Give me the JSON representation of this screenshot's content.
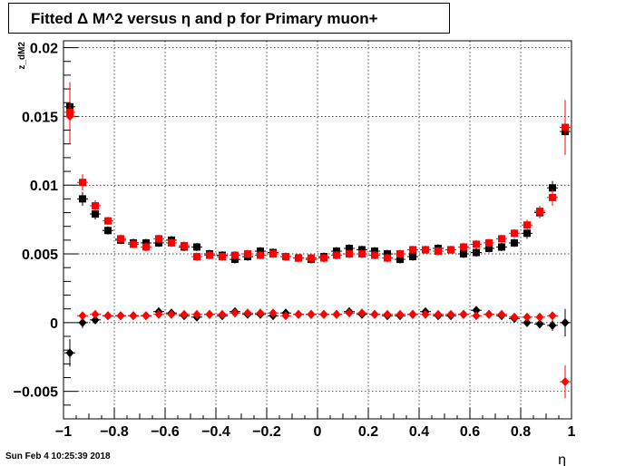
{
  "title": "Fitted Δ M^2 versus η and p for Primary muon+",
  "timestamp": "Sun Feb  4 10:25:39 2018",
  "chart_data": {
    "type": "scatter",
    "title": "Fitted Δ M^2 versus η and p for Primary muon+",
    "xlabel": "η",
    "ylabel": "z_dM2",
    "xlim": [
      -1,
      1
    ],
    "ylim": [
      -0.007,
      0.0205
    ],
    "grid": true,
    "x_ticks": [
      -1,
      -0.8,
      -0.6,
      -0.4,
      -0.2,
      0,
      0.2,
      0.4,
      0.6,
      0.8,
      1
    ],
    "x_tick_labels": [
      "−1",
      "−0.8",
      "−0.6",
      "−0.4",
      "−0.2",
      "0",
      "0.2",
      "0.4",
      "0.6",
      "0.8",
      "1"
    ],
    "y_ticks": [
      -0.005,
      0,
      0.005,
      0.01,
      0.015,
      0.02
    ],
    "y_tick_labels": [
      "−0.005",
      "0",
      "0.005",
      "0.01",
      "0.015",
      "0.02"
    ],
    "x": [
      -0.975,
      -0.925,
      -0.875,
      -0.825,
      -0.775,
      -0.725,
      -0.675,
      -0.625,
      -0.575,
      -0.525,
      -0.475,
      -0.425,
      -0.375,
      -0.325,
      -0.275,
      -0.225,
      -0.175,
      -0.125,
      -0.075,
      -0.025,
      0.025,
      0.075,
      0.125,
      0.175,
      0.225,
      0.275,
      0.325,
      0.375,
      0.425,
      0.475,
      0.525,
      0.575,
      0.625,
      0.675,
      0.725,
      0.775,
      0.825,
      0.875,
      0.925,
      0.975
    ],
    "series": [
      {
        "marker": "square",
        "color": "#000000",
        "values": [
          0.0157,
          0.009,
          0.0079,
          0.0067,
          0.006,
          0.0058,
          0.0058,
          0.0058,
          0.006,
          0.0055,
          0.0055,
          0.005,
          0.0049,
          0.0046,
          0.0048,
          0.0052,
          0.0051,
          0.0048,
          0.0047,
          0.0046,
          0.0048,
          0.0052,
          0.0054,
          0.0053,
          0.0052,
          0.005,
          0.0046,
          0.0048,
          0.0053,
          0.0054,
          0.0053,
          0.005,
          0.0051,
          0.0054,
          0.0055,
          0.0058,
          0.0065,
          0.008,
          0.0098,
          0.0139
        ],
        "errors": [
          0.0008,
          0.0005,
          0.0004,
          0.0003,
          0.0003,
          0.0003,
          0.0003,
          0.0003,
          0.0003,
          0.0003,
          0.0003,
          0.0003,
          0.0003,
          0.0003,
          0.0003,
          0.0003,
          0.0003,
          0.0003,
          0.0003,
          0.0003,
          0.0003,
          0.0003,
          0.0003,
          0.0003,
          0.0003,
          0.0003,
          0.0003,
          0.0003,
          0.0003,
          0.0003,
          0.0003,
          0.0003,
          0.0003,
          0.0003,
          0.0003,
          0.0003,
          0.0004,
          0.0004,
          0.0005,
          0.0008
        ]
      },
      {
        "marker": "square",
        "color": "#ff0000",
        "values": [
          0.0153,
          0.0102,
          0.0085,
          0.0074,
          0.0061,
          0.0057,
          0.0055,
          0.0061,
          0.0058,
          0.0056,
          0.0048,
          0.0049,
          0.0048,
          0.0049,
          0.005,
          0.0049,
          0.005,
          0.0048,
          0.0047,
          0.0047,
          0.0047,
          0.0049,
          0.005,
          0.005,
          0.0049,
          0.0047,
          0.005,
          0.0053,
          0.0053,
          0.0052,
          0.0053,
          0.0055,
          0.0057,
          0.0058,
          0.0061,
          0.0065,
          0.0071,
          0.0081,
          0.0091,
          0.0142
        ],
        "errors": [
          0.0022,
          0.0006,
          0.0004,
          0.0003,
          0.0003,
          0.0003,
          0.0003,
          0.0003,
          0.0003,
          0.0003,
          0.0003,
          0.0003,
          0.0003,
          0.0003,
          0.0003,
          0.0003,
          0.0003,
          0.0003,
          0.0003,
          0.0003,
          0.0003,
          0.0003,
          0.0003,
          0.0003,
          0.0003,
          0.0003,
          0.0003,
          0.0003,
          0.0003,
          0.0003,
          0.0003,
          0.0003,
          0.0003,
          0.0003,
          0.0003,
          0.0003,
          0.0004,
          0.0004,
          0.0006,
          0.002
        ]
      },
      {
        "marker": "diamond",
        "color": "#000000",
        "values": [
          -0.0022,
          0.0,
          0.0002,
          0.0005,
          0.0005,
          0.0005,
          0.0005,
          0.0008,
          0.0007,
          0.0005,
          0.0004,
          0.0006,
          0.0005,
          0.0008,
          0.0006,
          0.0006,
          0.0005,
          0.0007,
          0.0006,
          0.0006,
          0.0006,
          0.0006,
          0.0008,
          0.0006,
          0.0006,
          0.0005,
          0.0005,
          0.0006,
          0.0008,
          0.0005,
          0.0005,
          0.0006,
          0.0009,
          0.0006,
          0.0005,
          0.0003,
          0.0,
          -0.0001,
          -0.0002,
          0.0
        ],
        "errors": [
          0.001,
          0.0004,
          0.0003,
          0.0002,
          0.0002,
          0.0002,
          0.0002,
          0.0002,
          0.0002,
          0.0002,
          0.0002,
          0.0002,
          0.0002,
          0.0002,
          0.0002,
          0.0002,
          0.0002,
          0.0002,
          0.0002,
          0.0002,
          0.0002,
          0.0002,
          0.0002,
          0.0002,
          0.0002,
          0.0002,
          0.0002,
          0.0002,
          0.0002,
          0.0002,
          0.0002,
          0.0002,
          0.0002,
          0.0002,
          0.0002,
          0.0002,
          0.0003,
          0.0003,
          0.0004,
          0.001
        ]
      },
      {
        "marker": "diamond",
        "color": "#ff0000",
        "values": [
          0.015,
          0.0005,
          0.0006,
          0.0005,
          0.0005,
          0.0005,
          0.0005,
          0.0006,
          0.0006,
          0.0006,
          0.0006,
          0.0006,
          0.0006,
          0.0007,
          0.0007,
          0.0007,
          0.0007,
          0.0005,
          0.0006,
          0.0006,
          0.0006,
          0.0006,
          0.0007,
          0.0007,
          0.0006,
          0.0006,
          0.0006,
          0.0006,
          0.0006,
          0.0006,
          0.0006,
          0.0006,
          0.0005,
          0.0006,
          0.0006,
          0.0004,
          0.0004,
          0.0004,
          0.0005,
          -0.0043
        ],
        "errors": [
          0.002,
          0.0003,
          0.0002,
          0.0002,
          0.0002,
          0.0002,
          0.0002,
          0.0002,
          0.0002,
          0.0002,
          0.0002,
          0.0002,
          0.0002,
          0.0002,
          0.0002,
          0.0002,
          0.0002,
          0.0002,
          0.0002,
          0.0002,
          0.0002,
          0.0002,
          0.0002,
          0.0002,
          0.0002,
          0.0002,
          0.0002,
          0.0002,
          0.0002,
          0.0002,
          0.0002,
          0.0002,
          0.0002,
          0.0002,
          0.0002,
          0.0002,
          0.0002,
          0.0003,
          0.0003,
          0.0012
        ]
      }
    ]
  }
}
